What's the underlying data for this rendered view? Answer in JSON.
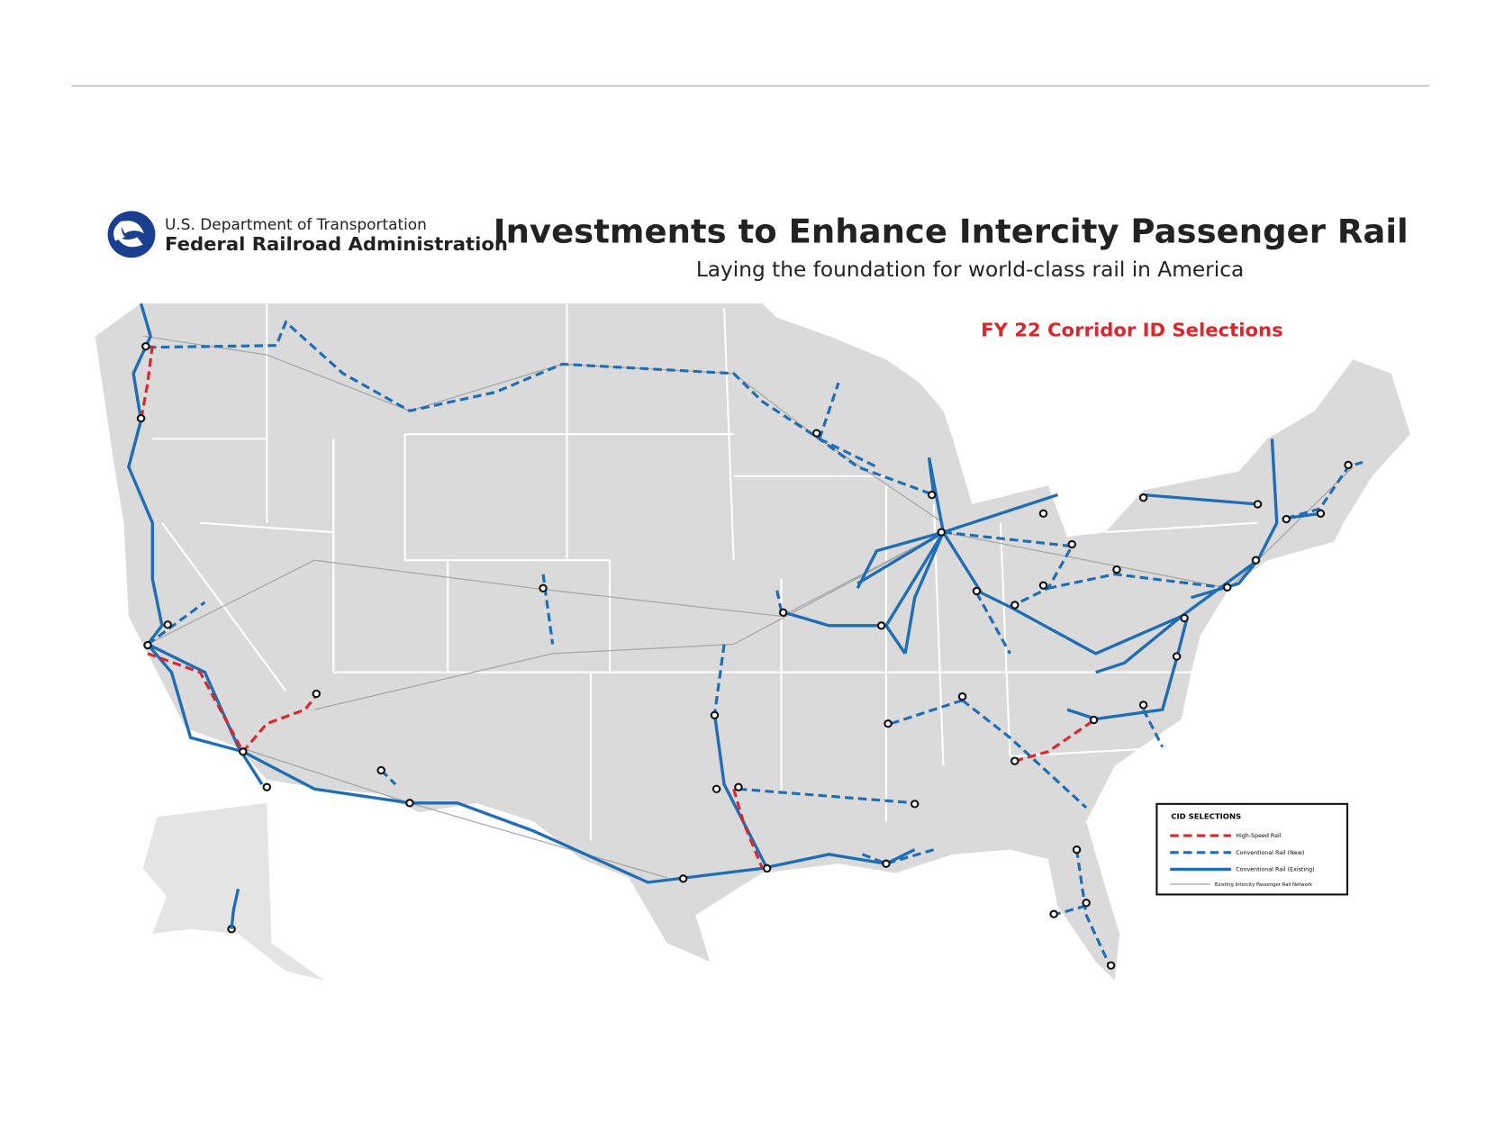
{
  "header": {
    "agency": "U.S. Department of Transportation",
    "administration": "Federal Railroad Administration",
    "title": "Investments to Enhance Intercity Passenger Rail",
    "subtitle": "Laying the foundation for world-class rail in America"
  },
  "map": {
    "label": "FY 22 Corridor ID Selections"
  },
  "legend": {
    "title": "CID SELECTIONS",
    "items": [
      "High-Speed Rail",
      "Conventional Rail (New)",
      "Conventional Rail (Existing)",
      "Existing Intercity Passenger Rail Network"
    ]
  }
}
